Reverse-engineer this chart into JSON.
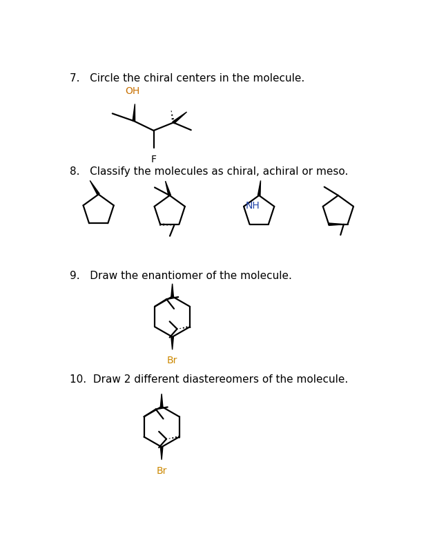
{
  "bg_color": "#ffffff",
  "text_color": "#000000",
  "q7_text": "7.   Circle the chiral centers in the molecule.",
  "q8_text": "8.   Classify the molecules as chiral, achiral or meso.",
  "q9_text": "9.   Draw the enantiomer of the molecule.",
  "q10_text": "10.  Draw 2 different diastereomers of the molecule.",
  "nh_color": "#2244aa",
  "br_color": "#cc8800",
  "lw": 1.6,
  "fig_width": 6.33,
  "fig_height": 8.05
}
